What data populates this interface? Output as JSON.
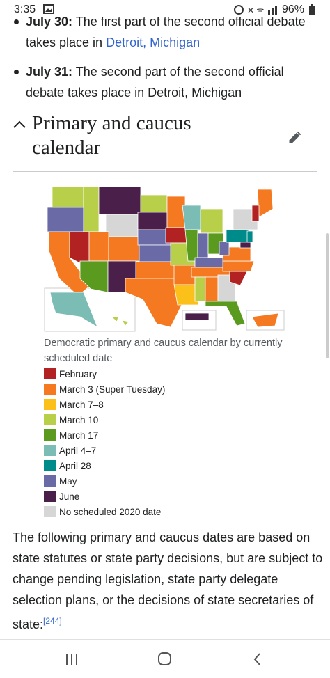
{
  "status_bar": {
    "time": "3:35",
    "battery": "96%"
  },
  "bullets": [
    {
      "date": "July 30:",
      "text": " The first part of the second official debate takes place in ",
      "link": "Detroit, Michigan"
    },
    {
      "date": "July 31:",
      "text": " The second part of the second official debate takes place in Detroit, Michigan"
    }
  ],
  "section": {
    "title": "Primary and caucus calendar"
  },
  "figure": {
    "caption": "Democratic primary and caucus calendar by currently scheduled date",
    "legend": [
      {
        "label": "February",
        "color": "#b22222"
      },
      {
        "label": "March 3 (Super Tuesday)",
        "color": "#f47920"
      },
      {
        "label": "March 7–8",
        "color": "#fbc01a"
      },
      {
        "label": "March 10",
        "color": "#b8cf4a"
      },
      {
        "label": "March 17",
        "color": "#5a9a1f"
      },
      {
        "label": "April 4–7",
        "color": "#7bbdb5"
      },
      {
        "label": "April 28",
        "color": "#008b8b"
      },
      {
        "label": "May",
        "color": "#6a6aa6"
      },
      {
        "label": "June",
        "color": "#4a1f4a"
      },
      {
        "label": "No scheduled 2020 date",
        "color": "#d6d6d6"
      }
    ]
  },
  "paragraph": {
    "text": "The following primary and caucus dates are based on state statutes or state party decisions, but are subject to change pending legislation, state party delegate selection plans, or the decisions of state secretaries of state:",
    "reference": "[244]"
  }
}
